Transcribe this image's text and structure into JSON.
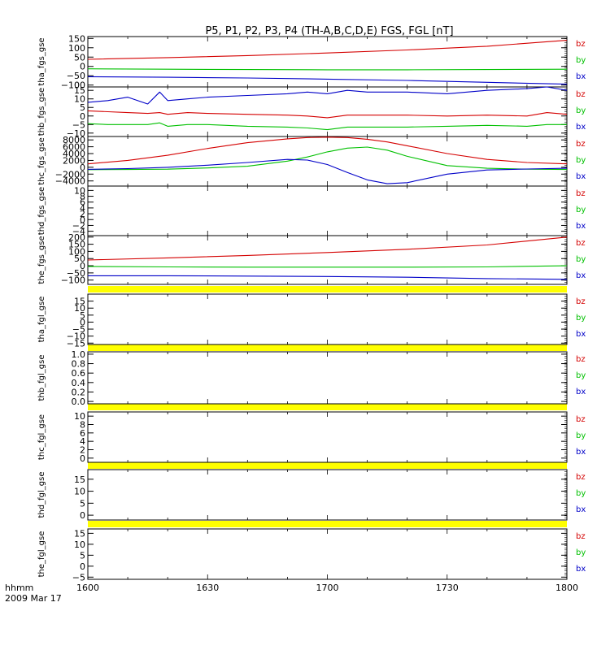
{
  "title": "P5, P1, P2, P3, P4 (TH-A,B,C,D,E) FGS, FGL [nT]",
  "xaxis": {
    "unit_label": "hhmm",
    "date_label": "2009 Mar 17",
    "ticks": [
      {
        "label": "1600",
        "minutes": 0
      },
      {
        "label": "1630",
        "minutes": 30
      },
      {
        "label": "1700",
        "minutes": 60
      },
      {
        "label": "1730",
        "minutes": 90
      },
      {
        "label": "1800",
        "minutes": 120
      }
    ]
  },
  "legend": [
    {
      "name": "bz",
      "color": "#d40000"
    },
    {
      "name": "by",
      "color": "#00c000"
    },
    {
      "name": "bx",
      "color": "#0000c8"
    }
  ],
  "colors": {
    "bz": "#d40000",
    "by": "#00c000",
    "bx": "#0000c8",
    "fgl_bar": "#ffff00"
  },
  "chart_data": [
    {
      "type": "line",
      "ylabel": "tha_fgs_gse",
      "ylim": [
        -110,
        160
      ],
      "yticks": [
        {
          "label": "150",
          "value": 150
        },
        {
          "label": "100",
          "value": 100
        },
        {
          "label": "50",
          "value": 50
        },
        {
          "label": "0",
          "value": 0
        },
        {
          "label": "−50",
          "value": -50
        },
        {
          "label": "−100",
          "value": -100
        }
      ],
      "x": [
        0,
        20,
        40,
        60,
        80,
        100,
        120
      ],
      "series": [
        {
          "name": "bz",
          "values": [
            38,
            47,
            58,
            72,
            88,
            108,
            140
          ]
        },
        {
          "name": "by",
          "values": [
            -13,
            -15,
            -17,
            -18,
            -18,
            -17,
            -15
          ]
        },
        {
          "name": "bx",
          "values": [
            -55,
            -58,
            -62,
            -68,
            -75,
            -85,
            -95
          ]
        }
      ]
    },
    {
      "type": "line",
      "ylabel": "thb_fgs_gse",
      "ylim": [
        -12,
        17
      ],
      "yticks": [
        {
          "label": "15",
          "value": 15
        },
        {
          "label": "10",
          "value": 10
        },
        {
          "label": "5",
          "value": 5
        },
        {
          "label": "0",
          "value": 0
        },
        {
          "label": "−5",
          "value": -5
        },
        {
          "label": "−10",
          "value": -10
        }
      ],
      "x": [
        0,
        5,
        10,
        15,
        18,
        20,
        25,
        30,
        40,
        50,
        55,
        60,
        65,
        70,
        80,
        90,
        100,
        110,
        115,
        120
      ],
      "series": [
        {
          "name": "bz",
          "values": [
            3,
            2.5,
            2,
            1.5,
            2,
            1,
            2,
            1.5,
            1,
            0.5,
            0,
            -1,
            0.5,
            0.5,
            0.5,
            0,
            0.5,
            0,
            2,
            1
          ]
        },
        {
          "name": "by",
          "values": [
            -4.5,
            -5,
            -5,
            -5,
            -4,
            -6,
            -5,
            -5,
            -6,
            -6.5,
            -7,
            -8,
            -6.5,
            -6.5,
            -6.5,
            -6,
            -5.5,
            -6,
            -5,
            -5
          ]
        },
        {
          "name": "bx",
          "values": [
            8,
            9,
            11,
            7,
            14,
            9,
            10,
            11,
            12,
            13,
            14,
            13,
            15,
            14,
            14,
            13,
            15,
            16,
            17,
            15
          ]
        }
      ]
    },
    {
      "type": "line",
      "ylabel": "thc_fgs_gse",
      "ylim": [
        -5500,
        9000
      ],
      "yticks": [
        {
          "label": "8000",
          "value": 8000
        },
        {
          "label": "6000",
          "value": 6000
        },
        {
          "label": "4000",
          "value": 4000
        },
        {
          "label": "2000",
          "value": 2000
        },
        {
          "label": "0",
          "value": 0
        },
        {
          "label": "−2000",
          "value": -2000
        },
        {
          "label": "−4000",
          "value": -4000
        }
      ],
      "x": [
        0,
        10,
        20,
        30,
        40,
        50,
        55,
        60,
        65,
        70,
        75,
        80,
        90,
        100,
        110,
        120
      ],
      "series": [
        {
          "name": "bz",
          "values": [
            1000,
            2000,
            3500,
            5500,
            7200,
            8300,
            8700,
            8800,
            8700,
            8200,
            7400,
            6300,
            4000,
            2300,
            1400,
            1000
          ]
        },
        {
          "name": "by",
          "values": [
            -700,
            -650,
            -550,
            -200,
            300,
            1800,
            3000,
            4500,
            5600,
            5900,
            5000,
            3200,
            500,
            -300,
            -550,
            -650
          ]
        },
        {
          "name": "bx",
          "values": [
            -600,
            -400,
            0,
            600,
            1400,
            2300,
            2100,
            800,
            -1500,
            -3700,
            -4800,
            -4500,
            -2000,
            -800,
            -500,
            -300
          ]
        }
      ]
    },
    {
      "type": "line",
      "ylabel": "thd_fgs_gse",
      "ylim": [
        -5.5,
        11.5
      ],
      "yticks": [
        {
          "label": "10",
          "value": 10
        },
        {
          "label": "8",
          "value": 8
        },
        {
          "label": "6",
          "value": 6
        },
        {
          "label": "4",
          "value": 4
        },
        {
          "label": "2",
          "value": 2
        },
        {
          "label": "0",
          "value": 0
        },
        {
          "label": "−2",
          "value": -2
        },
        {
          "label": "−4",
          "value": -4
        }
      ],
      "x": [],
      "series": []
    },
    {
      "type": "line",
      "ylabel": "the_fgs_gse",
      "ylim": [
        -130,
        210
      ],
      "yticks": [
        {
          "label": "200",
          "value": 200
        },
        {
          "label": "150",
          "value": 150
        },
        {
          "label": "100",
          "value": 100
        },
        {
          "label": "50",
          "value": 50
        },
        {
          "label": "0",
          "value": 0
        },
        {
          "label": "−50",
          "value": -50
        },
        {
          "label": "−100",
          "value": -100
        }
      ],
      "x": [
        0,
        20,
        40,
        60,
        80,
        100,
        120
      ],
      "series": [
        {
          "name": "bz",
          "values": [
            40,
            55,
            72,
            92,
            115,
            145,
            200
          ]
        },
        {
          "name": "by",
          "values": [
            -5,
            -8,
            -10,
            -10,
            -10,
            -8,
            0
          ]
        },
        {
          "name": "bx",
          "values": [
            -70,
            -70,
            -72,
            -75,
            -80,
            -90,
            -95
          ]
        }
      ]
    },
    {
      "type": "line",
      "ylabel": "tha_fgl_gse",
      "ylim": [
        -16,
        20
      ],
      "yticks": [
        {
          "label": "15",
          "value": 15
        },
        {
          "label": "10",
          "value": 10
        },
        {
          "label": "5",
          "value": 5
        },
        {
          "label": "0",
          "value": 0
        },
        {
          "label": "−5",
          "value": -5
        },
        {
          "label": "−10",
          "value": -10
        },
        {
          "label": "−15",
          "value": -15
        }
      ],
      "x": [],
      "series": []
    },
    {
      "type": "line",
      "ylabel": "thb_fgl_gse",
      "ylim": [
        -0.05,
        1.05
      ],
      "yticks": [
        {
          "label": "1.0",
          "value": 1.0
        },
        {
          "label": "0.8",
          "value": 0.8
        },
        {
          "label": "0.6",
          "value": 0.6
        },
        {
          "label": "0.4",
          "value": 0.4
        },
        {
          "label": "0.2",
          "value": 0.2
        },
        {
          "label": "0.0",
          "value": 0.0
        }
      ],
      "x": [],
      "series": []
    },
    {
      "type": "line",
      "ylabel": "thc_fgl_gse",
      "ylim": [
        -1,
        11
      ],
      "yticks": [
        {
          "label": "10",
          "value": 10
        },
        {
          "label": "8",
          "value": 8
        },
        {
          "label": "6",
          "value": 6
        },
        {
          "label": "4",
          "value": 4
        },
        {
          "label": "2",
          "value": 2
        },
        {
          "label": "0",
          "value": 0
        }
      ],
      "x": [],
      "series": []
    },
    {
      "type": "line",
      "ylabel": "thd_fgl_gse",
      "ylim": [
        -2,
        19
      ],
      "yticks": [
        {
          "label": "15",
          "value": 15
        },
        {
          "label": "10",
          "value": 10
        },
        {
          "label": "5",
          "value": 5
        },
        {
          "label": "0",
          "value": 0
        }
      ],
      "x": [],
      "series": []
    },
    {
      "type": "line",
      "ylabel": "the_fgl_gse",
      "ylim": [
        -6,
        17
      ],
      "yticks": [
        {
          "label": "15",
          "value": 15
        },
        {
          "label": "10",
          "value": 10
        },
        {
          "label": "5",
          "value": 5
        },
        {
          "label": "0",
          "value": 0
        },
        {
          "label": "−5",
          "value": -5
        }
      ],
      "x": [],
      "series": []
    }
  ]
}
